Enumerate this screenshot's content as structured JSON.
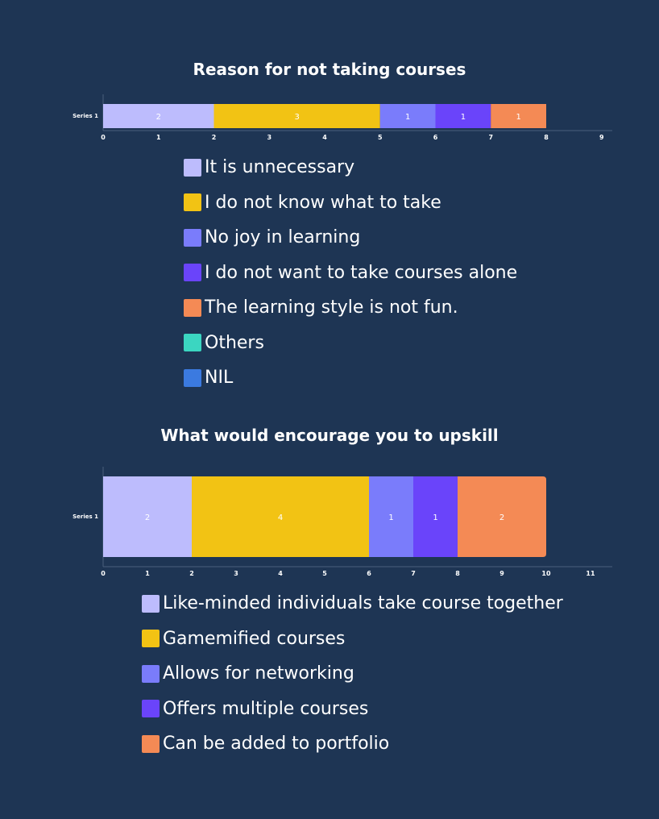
{
  "chart_data": [
    {
      "type": "bar",
      "orientation": "horizontal",
      "stacked": true,
      "title": "Reason for not taking courses",
      "categories": [
        "Series 1"
      ],
      "series": [
        {
          "name": "It is unnecessary",
          "values": [
            2
          ],
          "color": "#bdbcfd"
        },
        {
          "name": "I do not know what to take",
          "values": [
            3
          ],
          "color": "#f2c314"
        },
        {
          "name": "No joy in learning",
          "values": [
            1
          ],
          "color": "#7a7cfb"
        },
        {
          "name": "I do not want to take courses alone",
          "values": [
            1
          ],
          "color": "#6a44fa"
        },
        {
          "name": "The learning style is not fun.",
          "values": [
            1
          ],
          "color": "#f48a55"
        },
        {
          "name": "Others",
          "values": [
            0
          ],
          "color": "#3bd6c1"
        },
        {
          "name": "NIL",
          "values": [
            0
          ],
          "color": "#3b7ae0"
        }
      ],
      "xlim": [
        0,
        9
      ],
      "xticks": [
        "0",
        "1",
        "2",
        "3",
        "4",
        "5",
        "6",
        "7",
        "8",
        "9"
      ],
      "legend": "bottom"
    },
    {
      "type": "bar",
      "orientation": "horizontal",
      "stacked": true,
      "title": "What would encourage you to upskill",
      "categories": [
        "Series 1"
      ],
      "series": [
        {
          "name": "Like-minded individuals take course together",
          "values": [
            2
          ],
          "color": "#bdbcfd"
        },
        {
          "name": "Gamemified courses",
          "values": [
            4
          ],
          "color": "#f2c314"
        },
        {
          "name": "Allows for networking",
          "values": [
            1
          ],
          "color": "#7a7cfb"
        },
        {
          "name": "Offers multiple courses",
          "values": [
            1
          ],
          "color": "#6a44fa"
        },
        {
          "name": "Can be added to portfolio",
          "values": [
            2
          ],
          "color": "#f48a55"
        }
      ],
      "xlim": [
        0,
        11
      ],
      "xticks": [
        "0",
        "1",
        "2",
        "3",
        "4",
        "5",
        "6",
        "7",
        "8",
        "9",
        "10",
        "11"
      ],
      "legend": "bottom"
    }
  ]
}
